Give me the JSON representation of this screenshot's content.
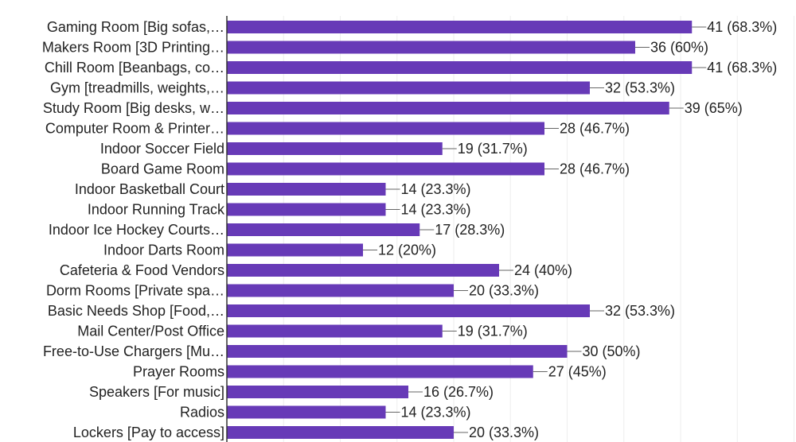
{
  "chart_data": {
    "type": "bar",
    "orientation": "horizontal",
    "xlim": [
      0,
      50
    ],
    "grid": true,
    "color": "#673ab7",
    "categories": [
      "Gaming Room [Big sofas,…",
      "Makers Room [3D Printing…",
      "Chill Room [Beanbags, co…",
      "Gym [treadmills, weights,…",
      "Study Room [Big desks, w…",
      "Computer Room & Printer…",
      "Indoor Soccer Field",
      "Board Game Room",
      "Indoor Basketball Court",
      "Indoor Running Track",
      "Indoor Ice Hockey Courts…",
      "Indoor Darts Room",
      "Cafeteria & Food Vendors",
      "Dorm Rooms [Private spa…",
      "Basic Needs Shop [Food,…",
      "Mail Center/Post Office",
      "Free-to-Use Chargers [Mu…",
      "Prayer Rooms",
      "Speakers [For music]",
      "Radios",
      "Lockers [Pay to access]"
    ],
    "values": [
      41,
      36,
      41,
      32,
      39,
      28,
      19,
      28,
      14,
      14,
      17,
      12,
      24,
      20,
      32,
      19,
      30,
      27,
      16,
      14,
      20
    ],
    "value_labels": [
      "41 (68.3%)",
      "36 (60%)",
      "41 (68.3%)",
      "32 (53.3%)",
      "39 (65%)",
      "28 (46.7%)",
      "19 (31.7%)",
      "28 (46.7%)",
      "14 (23.3%)",
      "14 (23.3%)",
      "17 (28.3%)",
      "12 (20%)",
      "24 (40%)",
      "20 (33.3%)",
      "32 (53.3%)",
      "19 (31.7%)",
      "30 (50%)",
      "27 (45%)",
      "16 (26.7%)",
      "14 (23.3%)",
      "20 (33.3%)"
    ]
  }
}
